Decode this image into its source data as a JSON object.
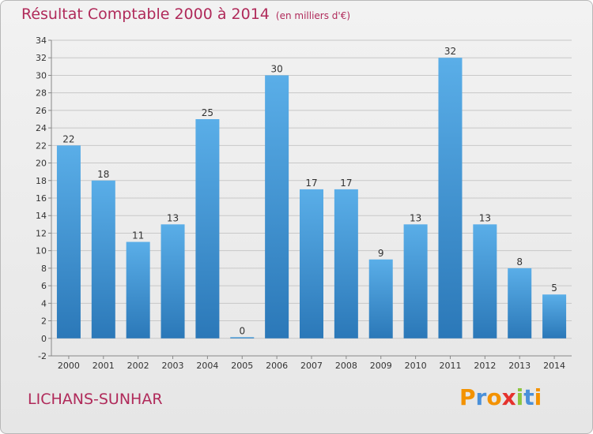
{
  "title": "Résultat Comptable 2000 à 2014",
  "unit_note": "(en milliers d'€)",
  "place_name": "LICHANS-SUNHAR",
  "logo": {
    "text": "Proxiti",
    "letters": [
      "P",
      "r",
      "o",
      "x",
      "i",
      "t",
      "i"
    ],
    "letter_colors": [
      "#f39200",
      "#4a90d9",
      "#f39200",
      "#e5322d",
      "#8dc63f",
      "#4a90d9",
      "#f39200"
    ]
  },
  "colors": {
    "bar_top": "#5aaee8",
    "bar_bottom": "#2b78b8",
    "title": "#b02a5a",
    "grid": "#c8c8c8"
  },
  "chart_data": {
    "type": "bar",
    "categories": [
      "2000",
      "2001",
      "2002",
      "2003",
      "2004",
      "2005",
      "2006",
      "2007",
      "2008",
      "2009",
      "2010",
      "2011",
      "2012",
      "2013",
      "2014"
    ],
    "values": [
      22,
      18,
      11,
      13,
      25,
      0,
      30,
      17,
      17,
      9,
      13,
      32,
      13,
      8,
      5
    ],
    "data_labels": [
      "22",
      "18",
      "11",
      "13",
      "25",
      "0",
      "30",
      "17",
      "17",
      "9",
      "13",
      "32",
      "13",
      "8",
      "5"
    ],
    "ylim": [
      -2,
      34
    ],
    "yticks": [
      -2,
      0,
      2,
      4,
      6,
      8,
      10,
      12,
      14,
      16,
      18,
      20,
      22,
      24,
      26,
      28,
      30,
      32,
      34
    ],
    "grid": true,
    "xlabel": "",
    "ylabel": ""
  }
}
